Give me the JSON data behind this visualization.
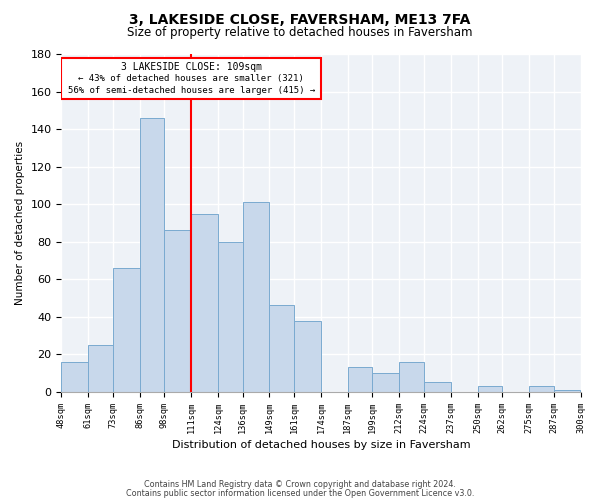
{
  "title": "3, LAKESIDE CLOSE, FAVERSHAM, ME13 7FA",
  "subtitle": "Size of property relative to detached houses in Faversham",
  "xlabel": "Distribution of detached houses by size in Faversham",
  "ylabel": "Number of detached properties",
  "bar_color": "#c8d8eb",
  "bar_edge_color": "#7aaad0",
  "reference_line_x": 111,
  "reference_line_color": "red",
  "annotation_title": "3 LAKESIDE CLOSE: 109sqm",
  "annotation_line1": "← 43% of detached houses are smaller (321)",
  "annotation_line2": "56% of semi-detached houses are larger (415) →",
  "bin_edges": [
    48,
    61,
    73,
    86,
    98,
    111,
    124,
    136,
    149,
    161,
    174,
    187,
    199,
    212,
    224,
    237,
    250,
    262,
    275,
    287,
    300
  ],
  "bin_heights": [
    16,
    25,
    66,
    146,
    86,
    95,
    80,
    101,
    46,
    38,
    0,
    13,
    10,
    16,
    5,
    0,
    3,
    0,
    3,
    1
  ],
  "tick_labels": [
    "48sqm",
    "61sqm",
    "73sqm",
    "86sqm",
    "98sqm",
    "111sqm",
    "124sqm",
    "136sqm",
    "149sqm",
    "161sqm",
    "174sqm",
    "187sqm",
    "199sqm",
    "212sqm",
    "224sqm",
    "237sqm",
    "250sqm",
    "262sqm",
    "275sqm",
    "287sqm",
    "300sqm"
  ],
  "ylim": [
    0,
    180
  ],
  "yticks": [
    0,
    20,
    40,
    60,
    80,
    100,
    120,
    140,
    160,
    180
  ],
  "footer_line1": "Contains HM Land Registry data © Crown copyright and database right 2024.",
  "footer_line2": "Contains public sector information licensed under the Open Government Licence v3.0.",
  "background_color": "#eef2f7"
}
